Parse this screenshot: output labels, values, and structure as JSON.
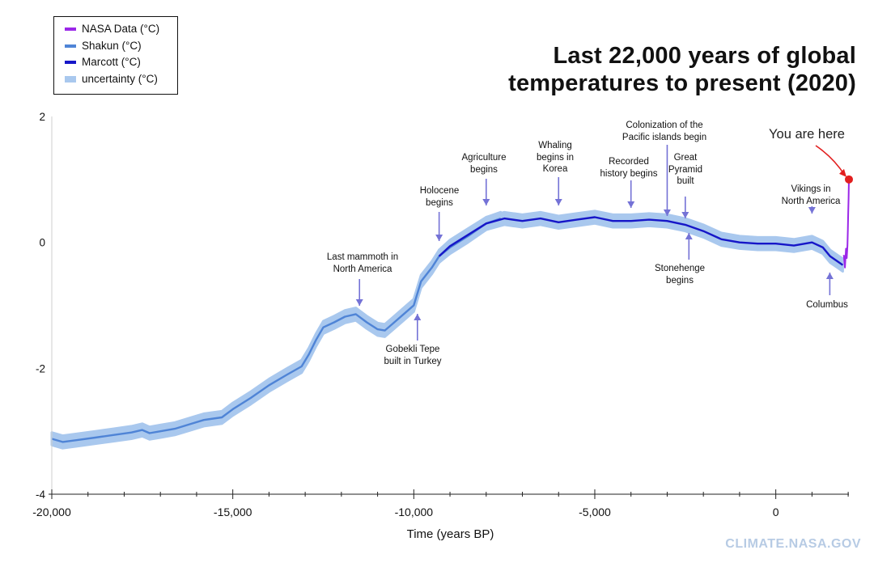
{
  "title": [
    "Last 22,000 years of global",
    "temperatures to present (2020)"
  ],
  "watermark": "CLIMATE.NASA.GOV",
  "legend": [
    {
      "label": "NASA Data (°C)",
      "color": "#9b27e8"
    },
    {
      "label": "Shakun (°C)",
      "color": "#4f84d6"
    },
    {
      "label": "Marcott (°C)",
      "color": "#1616c8"
    },
    {
      "label": "uncertainty (°C)",
      "color": "#a9c8ee"
    }
  ],
  "you_are_here": "You are here",
  "annotations": [
    {
      "lines": [
        "Last mammoth in",
        "North America"
      ],
      "x": -11500,
      "side": "above"
    },
    {
      "lines": [
        "Gobekli Tepe",
        "built in Turkey"
      ],
      "x": -9900,
      "side": "below"
    },
    {
      "lines": [
        "Holocene",
        "begins"
      ],
      "x": -9300,
      "side": "above"
    },
    {
      "lines": [
        "Agriculture",
        "begins"
      ],
      "x": -8000,
      "side": "above"
    },
    {
      "lines": [
        "Whaling",
        "begins in",
        "Korea"
      ],
      "x": -6000,
      "side": "above"
    },
    {
      "lines": [
        "Recorded",
        "history begins"
      ],
      "x": -4000,
      "side": "above"
    },
    {
      "lines": [
        "Colonization of the",
        "Pacific islands begin"
      ],
      "x": -3000,
      "side": "above"
    },
    {
      "lines": [
        "Great",
        "Pyramid",
        "built"
      ],
      "x": -2500,
      "side": "above"
    },
    {
      "lines": [
        "Stonehenge",
        "begins"
      ],
      "x": -2400,
      "side": "below"
    },
    {
      "lines": [
        "Vikings in",
        "North America"
      ],
      "x": 1000,
      "side": "above"
    },
    {
      "lines": [
        "Columbus"
      ],
      "x": 1492,
      "side": "below"
    }
  ],
  "chart_data": {
    "type": "line",
    "xlabel": "Time (years BP)",
    "ylabel": "",
    "xlim": [
      -20000,
      2020
    ],
    "ylim": [
      -4,
      2
    ],
    "x_ticks": [
      -20000,
      -15000,
      -10000,
      -5000,
      0
    ],
    "x_tick_labels": [
      "-20,000",
      "-15,000",
      "-10,000",
      "-5,000",
      "0"
    ],
    "y_ticks": [
      -4,
      -2,
      0,
      2
    ],
    "y_tick_labels": [
      "-4",
      "-2",
      "0",
      "2"
    ],
    "uncertainty_halfwidth": 0.1,
    "series": [
      {
        "name": "Shakun (°C)",
        "color": "#4f84d6",
        "x": [
          -20000,
          -19700,
          -19300,
          -18800,
          -18300,
          -17800,
          -17500,
          -17300,
          -17000,
          -16600,
          -16200,
          -15800,
          -15300,
          -15000,
          -14500,
          -14000,
          -13500,
          -13100,
          -12900,
          -12700,
          -12500,
          -12200,
          -11900,
          -11600,
          -11300,
          -11000,
          -10800,
          -10600,
          -10300,
          -10000,
          -9800,
          -9500,
          -9300,
          -9000,
          -8500,
          -8000,
          -7600
        ],
        "y": [
          -3.12,
          -3.17,
          -3.14,
          -3.1,
          -3.06,
          -3.02,
          -2.98,
          -3.03,
          -3.0,
          -2.96,
          -2.89,
          -2.82,
          -2.78,
          -2.65,
          -2.47,
          -2.27,
          -2.1,
          -1.97,
          -1.78,
          -1.55,
          -1.35,
          -1.27,
          -1.18,
          -1.14,
          -1.27,
          -1.38,
          -1.4,
          -1.3,
          -1.15,
          -1.0,
          -0.62,
          -0.4,
          -0.22,
          -0.08,
          0.1,
          0.3,
          0.38
        ]
      },
      {
        "name": "Marcott (°C)",
        "color": "#1616c8",
        "x": [
          -9300,
          -9000,
          -8500,
          -8000,
          -7500,
          -7000,
          -6500,
          -6000,
          -5500,
          -5000,
          -4500,
          -4000,
          -3500,
          -3000,
          -2500,
          -2000,
          -1500,
          -1000,
          -500,
          0,
          500,
          1000,
          1300,
          1500,
          1700,
          1850
        ],
        "y": [
          -0.22,
          -0.06,
          0.12,
          0.3,
          0.38,
          0.34,
          0.38,
          0.32,
          0.36,
          0.4,
          0.34,
          0.34,
          0.36,
          0.34,
          0.28,
          0.18,
          0.05,
          0.0,
          -0.02,
          -0.02,
          -0.05,
          0.0,
          -0.08,
          -0.22,
          -0.3,
          -0.36
        ]
      },
      {
        "name": "NASA Data (°C)",
        "color": "#9b27e8",
        "x": [
          1880,
          1910,
          1940,
          1960,
          1980,
          1990,
          2000,
          2010,
          2020
        ],
        "y": [
          -0.2,
          -0.4,
          -0.1,
          -0.25,
          -0.05,
          0.2,
          0.45,
          0.7,
          1.0
        ]
      }
    ]
  }
}
